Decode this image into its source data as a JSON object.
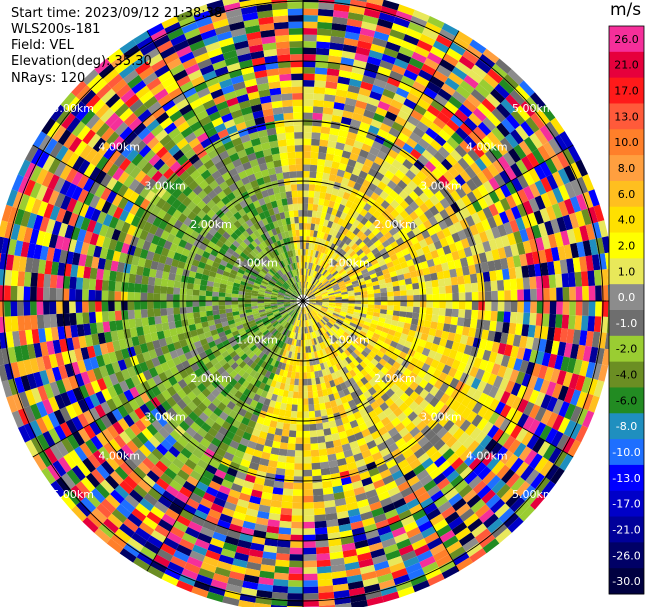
{
  "info": {
    "start_time": "Start time: 2023/09/12 21:38:38",
    "instrument": "WLS200s-181",
    "field": "Field: VEL",
    "elevation": "Elevation(deg): 35.30",
    "nrays": "NRays: 120"
  },
  "colorbar": {
    "unit": "m/s",
    "levels": [
      "26.0",
      "21.0",
      "17.0",
      "13.0",
      "10.0",
      "8.0",
      "6.0",
      "4.0",
      "2.0",
      "1.0",
      "0.0",
      "-1.0",
      "-2.0",
      "-4.0",
      "-6.0",
      "-8.0",
      "-10.0",
      "-13.0",
      "-17.0",
      "-21.0",
      "-26.0",
      "-30.0"
    ],
    "colors": [
      "#f52f9a",
      "#e6003c",
      "#ff1a1a",
      "#ff5a3a",
      "#ff7f2a",
      "#ff9f3f",
      "#ffbf1f",
      "#ffe000",
      "#ffff00",
      "#e8e85a",
      "#8c8c8c",
      "#6e6e6e",
      "#9acd32",
      "#6b8e23",
      "#228b22",
      "#1f8fbf",
      "#1e6fff",
      "#0000ff",
      "#0000c8",
      "#00009a",
      "#000066",
      "#000040"
    ]
  },
  "chart_data": {
    "type": "ppi",
    "field": "VEL",
    "nrays": 120,
    "elevation_deg": 35.3,
    "range_rings_km": [
      1.0,
      2.0,
      3.0,
      4.0,
      5.0
    ],
    "range_ring_labels": [
      "1.00km",
      "2.00km",
      "3.00km",
      "4.00km",
      "5.00km"
    ],
    "max_range_km": 5.2,
    "spoke_angles_deg": [
      0,
      30,
      60,
      90,
      120,
      150,
      180,
      210,
      240,
      270,
      300,
      330
    ]
  }
}
